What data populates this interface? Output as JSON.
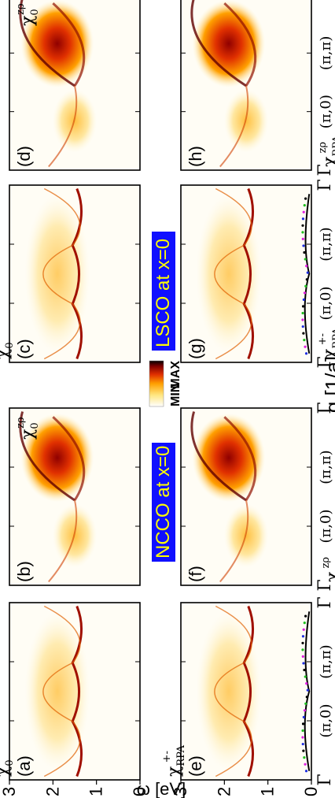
{
  "figure": {
    "orientation": "rotated-90-ccw",
    "x_axis_label": "q [1/a]",
    "y_axis_label": "ω [eV]",
    "y_ticks": [
      "0",
      "1",
      "2",
      "3"
    ],
    "x_ticks": [
      "Γ",
      "(π,0)",
      "(π,π)",
      "Γ"
    ],
    "group_labels": [
      "NCCO at x=0",
      "LSCO at x=0"
    ],
    "group_label_color": "#1010ff",
    "colorbar": {
      "min_label": "MIN",
      "max_label": "MAX",
      "colors": [
        "#ffffff",
        "#ffe680",
        "#ffa000",
        "#e03000",
        "#800000",
        "#000000"
      ]
    },
    "panels": [
      {
        "id": "a",
        "tag": "(a)",
        "symbol": "χ",
        "sub": "0",
        "sup": "+-"
      },
      {
        "id": "b",
        "tag": "(b)",
        "symbol": "χ",
        "sub": "0",
        "sup": "zρ"
      },
      {
        "id": "c",
        "tag": "(c)",
        "symbol": "χ",
        "sub": "0",
        "sup": "+-"
      },
      {
        "id": "d",
        "tag": "(d)",
        "symbol": "χ",
        "sub": "0",
        "sup": "zρ"
      },
      {
        "id": "e",
        "tag": "(e)",
        "symbol": "χ",
        "sub": "RPA",
        "sup": "+-"
      },
      {
        "id": "f",
        "tag": "(f)",
        "symbol": "χ",
        "sub": "RPA",
        "sup": "zρ"
      },
      {
        "id": "g",
        "tag": "(g)",
        "symbol": "χ",
        "sub": "RPA",
        "sup": "+-"
      },
      {
        "id": "h",
        "tag": "(h)",
        "symbol": "χ",
        "sub": "RPA",
        "sup": "zρ"
      }
    ]
  }
}
